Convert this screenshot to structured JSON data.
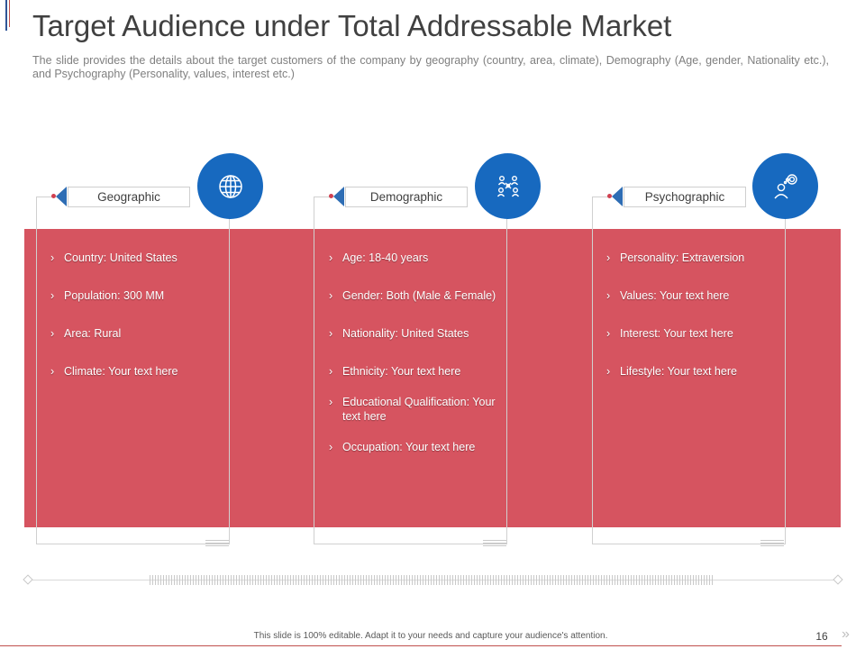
{
  "header": {
    "title": "Target Audience under Total Addressable Market",
    "subtitle": "The slide provides the details about the target customers of the company by geography (country, area, climate), Demography (Age, gender, Nationality etc.), and Psychography (Personality, values, interest etc.)"
  },
  "colors": {
    "band": "#d65460",
    "circle": "#1769bf",
    "accent_blue": "#2f5597",
    "accent_red": "#c0504d"
  },
  "columns": [
    {
      "label": "Geographic",
      "icon": "globe-icon",
      "items": [
        "Country: United States",
        "Population: 300 MM",
        "Area: Rural",
        "Climate: Your text here"
      ]
    },
    {
      "label": "Demographic",
      "icon": "people-network-icon",
      "items": [
        "Age: 18-40 years",
        "Gender: Both (Male & Female)",
        "Nationality: United States",
        "Ethnicity: Your text here",
        "Educational Qualification: Your text here",
        "Occupation: Your text here"
      ]
    },
    {
      "label": "Psychographic",
      "icon": "person-thinking-icon",
      "items": [
        "Personality: Extraversion",
        "Values: Your text here",
        "Interest: Your text here",
        "Lifestyle: Your text here"
      ]
    }
  ],
  "footer": {
    "note": "This slide is 100% editable. Adapt it to your needs and capture your audience's attention.",
    "page_number": "16",
    "next_symbol": "»"
  }
}
